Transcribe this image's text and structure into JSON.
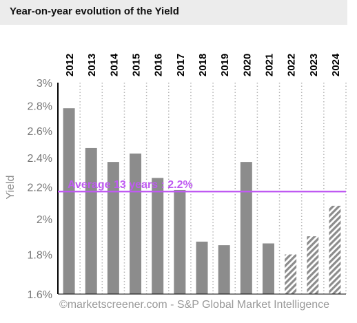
{
  "header": {
    "title": "Year-on-year evolution of the Yield"
  },
  "watermark": "©marketscreener.com - S&P Global Market Intelligence",
  "colors": {
    "bar": "#8c8c8c",
    "average": "#bf5af2",
    "axis": "#000000",
    "grid": "#b5b5b5",
    "header_bg": "#ececec"
  },
  "chart_data": {
    "type": "bar",
    "title": "Year-on-year evolution of the Yield",
    "ylabel": "Yield",
    "xlabel": "",
    "y_scale": "log",
    "ylim": [
      1.6,
      3.0
    ],
    "categories": [
      "2012",
      "2013",
      "2014",
      "2015",
      "2016",
      "2017",
      "2018",
      "2019",
      "2020",
      "2021",
      "2022",
      "2023",
      "2024"
    ],
    "y_ticks": [
      1.6,
      1.8,
      2.0,
      2.2,
      2.4,
      2.6,
      2.8,
      3.0
    ],
    "y_tick_labels": [
      "1.6%",
      "1.8%",
      "2%",
      "2.2%",
      "2.4%",
      "2.6%",
      "2.8%",
      "3%"
    ],
    "x_labels_position": "top, rotated vertical",
    "grid": "vertical dotted lines between categories",
    "series": [
      {
        "values": [
          2.78,
          2.47,
          2.37,
          2.43,
          2.26,
          2.18,
          1.87,
          1.85,
          2.37,
          1.86,
          1.8,
          1.9,
          2.08
        ],
        "estimated_from": "2022"
      }
    ],
    "average_line": {
      "value": 2.17,
      "label": "Average 13 years : 2.2%"
    }
  }
}
